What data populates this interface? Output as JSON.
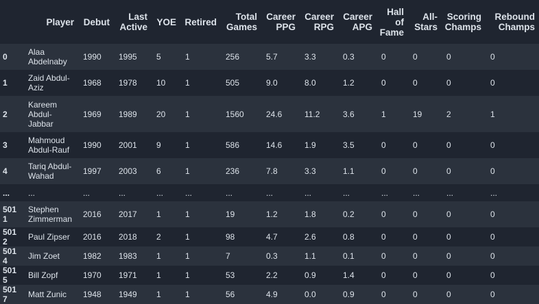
{
  "columns": [
    "",
    "Player",
    "Debut",
    "Last Active",
    "YOE",
    "Retired",
    "Total Games",
    "Career PPG",
    "Career RPG",
    "Career APG",
    "Hall of Fame",
    "All-Stars",
    "Scoring Champs",
    "Rebound Champs"
  ],
  "rows": [
    [
      "0",
      "Alaa Abdelnaby",
      "1990",
      "1995",
      "5",
      "1",
      "256",
      "5.7",
      "3.3",
      "0.3",
      "0",
      "0",
      "0",
      "0"
    ],
    [
      "1",
      "Zaid Abdul-Aziz",
      "1968",
      "1978",
      "10",
      "1",
      "505",
      "9.0",
      "8.0",
      "1.2",
      "0",
      "0",
      "0",
      "0"
    ],
    [
      "2",
      "Kareem Abdul-Jabbar",
      "1969",
      "1989",
      "20",
      "1",
      "1560",
      "24.6",
      "11.2",
      "3.6",
      "1",
      "19",
      "2",
      "1"
    ],
    [
      "3",
      "Mahmoud Abdul-Rauf",
      "1990",
      "2001",
      "9",
      "1",
      "586",
      "14.6",
      "1.9",
      "3.5",
      "0",
      "0",
      "0",
      "0"
    ],
    [
      "4",
      "Tariq Abdul-Wahad",
      "1997",
      "2003",
      "6",
      "1",
      "236",
      "7.8",
      "3.3",
      "1.1",
      "0",
      "0",
      "0",
      "0"
    ],
    [
      "...",
      "...",
      "...",
      "...",
      "...",
      "...",
      "...",
      "...",
      "...",
      "...",
      "...",
      "...",
      "...",
      "..."
    ],
    [
      "5011",
      "Stephen Zimmerman",
      "2016",
      "2017",
      "1",
      "1",
      "19",
      "1.2",
      "1.8",
      "0.2",
      "0",
      "0",
      "0",
      "0"
    ],
    [
      "5012",
      "Paul Zipser",
      "2016",
      "2018",
      "2",
      "1",
      "98",
      "4.7",
      "2.6",
      "0.8",
      "0",
      "0",
      "0",
      "0"
    ],
    [
      "5014",
      "Jim Zoet",
      "1982",
      "1983",
      "1",
      "1",
      "7",
      "0.3",
      "1.1",
      "0.1",
      "0",
      "0",
      "0",
      "0"
    ],
    [
      "5015",
      "Bill Zopf",
      "1970",
      "1971",
      "1",
      "1",
      "53",
      "2.2",
      "0.9",
      "1.4",
      "0",
      "0",
      "0",
      "0"
    ],
    [
      "5017",
      "Matt Zunic",
      "1948",
      "1949",
      "1",
      "1",
      "56",
      "4.9",
      "0.0",
      "0.9",
      "0",
      "0",
      "0",
      "0"
    ]
  ]
}
